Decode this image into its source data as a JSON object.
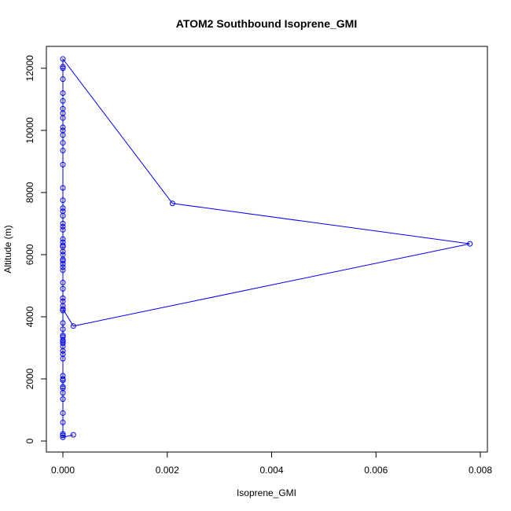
{
  "chart_data": {
    "type": "line",
    "title": "ATOM2 Southbound Isoprene_GMI",
    "xlabel": "Isoprene_GMI",
    "ylabel": "Altitude (m)",
    "xlim": [
      0,
      0.008
    ],
    "ylim": [
      0,
      12300
    ],
    "x_ticks": [
      0,
      0.002,
      0.004,
      0.006,
      0.008
    ],
    "x_tick_labels": [
      "0.000",
      "0.002",
      "0.004",
      "0.006",
      "0.008"
    ],
    "y_ticks": [
      0,
      2000,
      4000,
      6000,
      8000,
      10000,
      12000
    ],
    "y_tick_labels": [
      "0",
      "2000",
      "4000",
      "6000",
      "8000",
      "10000",
      "12000"
    ],
    "marker": "open-circle",
    "grid": false,
    "series": [
      {
        "color": "#0000ff",
        "x": [
          0.0002,
          0.0,
          0.0,
          0.0,
          0.0,
          0.0,
          0.0,
          0.0,
          0.0,
          0.0,
          0.0,
          0.0,
          0.0,
          0.0,
          0.0,
          0.0,
          0.0,
          0.0,
          0.0,
          0.0,
          0.0,
          0.0,
          0.0,
          0.0,
          0.0,
          0.0,
          0.0,
          0.0,
          0.0,
          0.0,
          0.0002,
          0.0078,
          0.0021,
          0.0,
          0.0,
          0.0,
          0.0,
          0.0,
          0.0,
          0.0,
          0.0,
          0.0,
          0.0,
          0.0,
          0.0,
          0.0,
          0.0,
          0.0,
          0.0,
          0.0,
          0.0,
          0.0,
          0.0,
          0.0,
          0.0,
          0.0,
          0.0,
          0.0,
          0.0,
          0.0,
          0.0,
          0.0,
          0.0,
          0.0,
          0.0,
          0.0,
          0.0,
          0.0
        ],
        "y": [
          200,
          120,
          180,
          230,
          600,
          900,
          1350,
          1550,
          1750,
          1950,
          2100,
          2650,
          2800,
          2900,
          3050,
          3150,
          3250,
          3350,
          3600,
          3800,
          4200,
          4350,
          4500,
          4600,
          4900,
          5100,
          5500,
          5600,
          5800,
          4250,
          3700,
          6350,
          7650,
          12300,
          12050,
          12000,
          11650,
          11200,
          10950,
          10700,
          10550,
          10400,
          10100,
          10000,
          9850,
          9600,
          9350,
          8900,
          8150,
          7750,
          7500,
          7400,
          7250,
          7000,
          6900,
          6800,
          6500,
          6400,
          6300,
          6250,
          6100,
          6000,
          5850,
          5700,
          3400,
          3200,
          2000,
          1700
        ]
      }
    ]
  }
}
